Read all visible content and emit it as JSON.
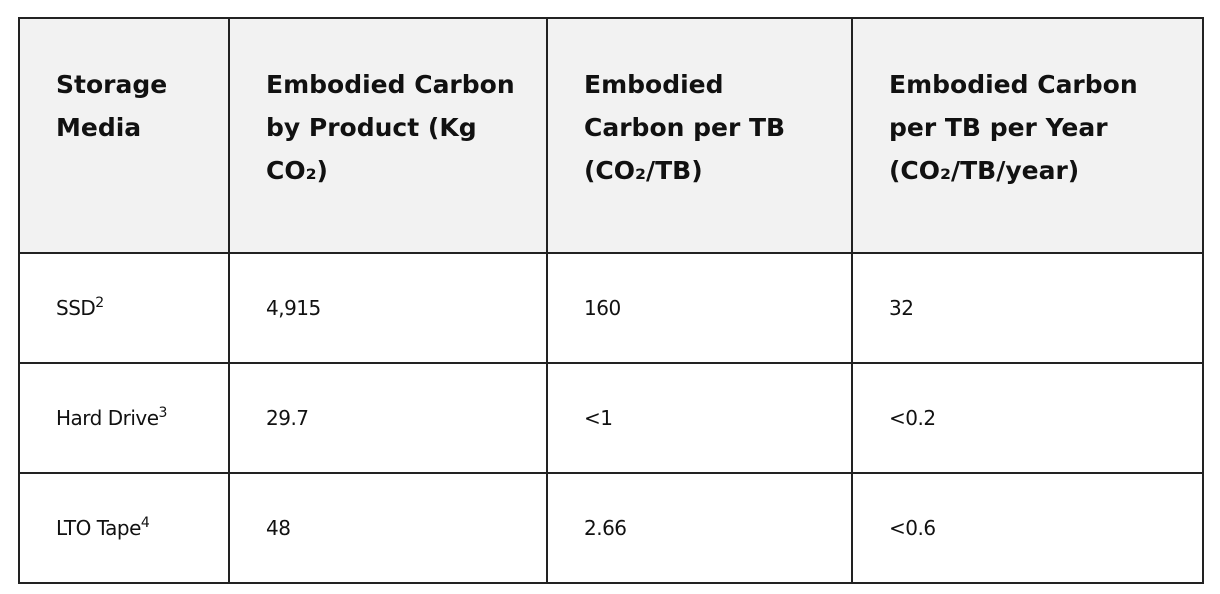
{
  "table": {
    "headers": [
      "Storage Media",
      "Embodied Carbon by Product (Kg CO₂)",
      "Embodied Carbon per TB (CO₂/TB)",
      "Embodied Carbon per TB per Year (CO₂/TB/year)"
    ],
    "rows": [
      {
        "media": "SSD",
        "note": "2",
        "cells": [
          "4,915",
          "160",
          "32"
        ]
      },
      {
        "media": "Hard Drive",
        "note": "3",
        "cells": [
          "29.7",
          "<1",
          "<0.2"
        ]
      },
      {
        "media": "LTO Tape",
        "note": "4",
        "cells": [
          "48",
          "2.66",
          "<0.6"
        ]
      }
    ]
  }
}
